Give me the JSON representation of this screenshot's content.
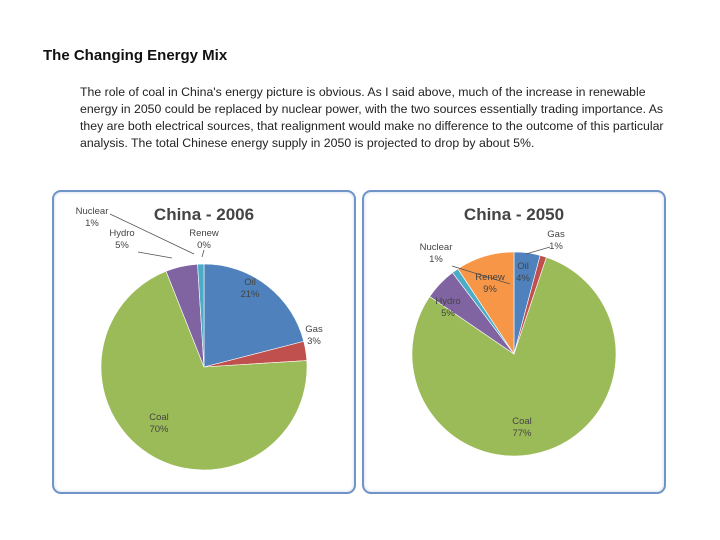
{
  "page": {
    "title": "The Changing Energy Mix",
    "intro": "The role of coal in China's energy picture is obvious. As I said above, much of the increase in renewable energy in 2050 could be replaced by nuclear power, with the two sources essentially trading importance. As they are both electrical sources, that realignment would make no difference to the outcome of this particular analysis. The total Chinese energy supply in 2050 is projected to drop by about 5%."
  },
  "chart_data": [
    {
      "type": "pie",
      "title": "China - 2006",
      "slices": [
        {
          "label": "Oil",
          "value": 21,
          "display": "21%",
          "color": "#4f81bd"
        },
        {
          "label": "Gas",
          "value": 3,
          "display": "3%",
          "color": "#c0504d"
        },
        {
          "label": "Coal",
          "value": 70,
          "display": "70%",
          "color": "#9bbb59"
        },
        {
          "label": "Hydro",
          "value": 5,
          "display": "5%",
          "color": "#8064a2"
        },
        {
          "label": "Nuclear",
          "value": 1,
          "display": "1%",
          "color": "#4bacc6"
        },
        {
          "label": "Renew",
          "value": 0,
          "display": "0%",
          "color": "#f79646"
        }
      ]
    },
    {
      "type": "pie",
      "title": "China - 2050",
      "slices": [
        {
          "label": "Oil",
          "value": 4,
          "display": "4%",
          "color": "#4f81bd"
        },
        {
          "label": "Gas",
          "value": 1,
          "display": "1%",
          "color": "#c0504d"
        },
        {
          "label": "Coal",
          "value": 77,
          "display": "77%",
          "color": "#9bbb59"
        },
        {
          "label": "Hydro",
          "value": 5,
          "display": "5%",
          "color": "#8064a2"
        },
        {
          "label": "Nuclear",
          "value": 1,
          "display": "1%",
          "color": "#4bacc6"
        },
        {
          "label": "Renew",
          "value": 9,
          "display": "9%",
          "color": "#f79646"
        }
      ]
    }
  ]
}
